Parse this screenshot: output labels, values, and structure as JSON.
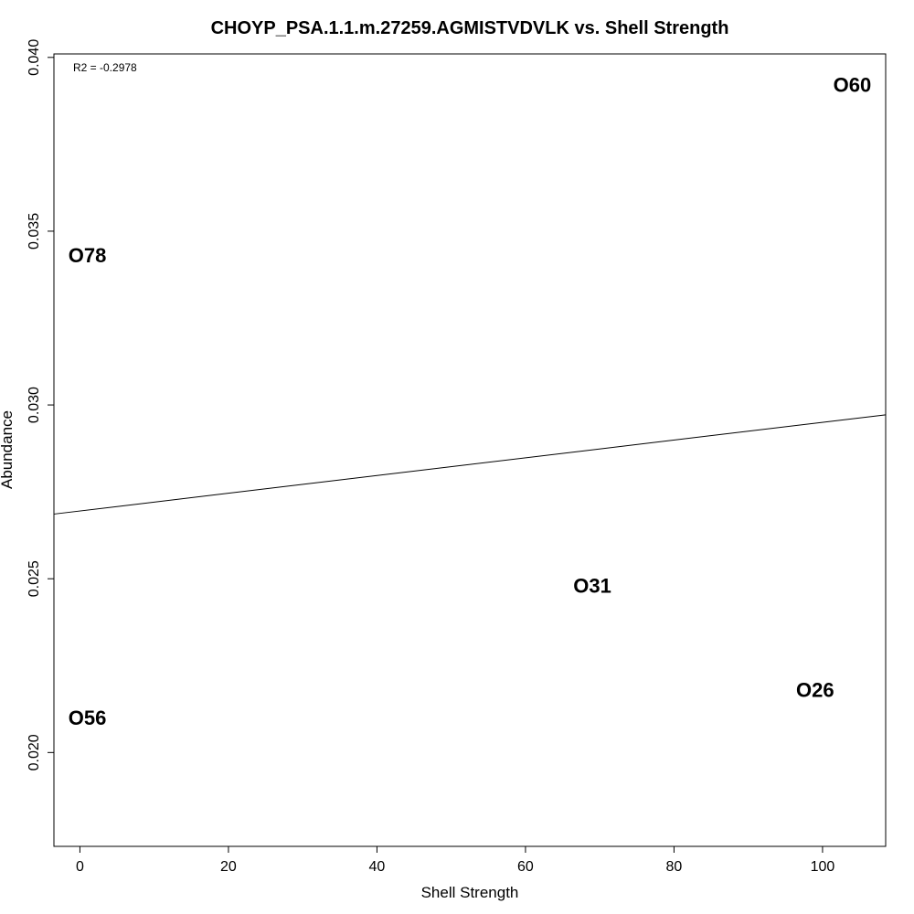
{
  "chart_data": {
    "type": "scatter",
    "title": "CHOYP_PSA.1.1.m.27259.AGMISTVDVLK vs. Shell Strength",
    "xlabel": "Shell Strength",
    "ylabel": "Abundance",
    "xlim": [
      -3.5,
      108.5
    ],
    "ylim": [
      0.0173,
      0.0401
    ],
    "x_ticks": [
      0,
      20,
      40,
      60,
      80,
      100
    ],
    "y_ticks": [
      0.02,
      0.025,
      0.03,
      0.035,
      0.04
    ],
    "y_tick_labels": [
      "0.020",
      "0.025",
      "0.030",
      "0.035",
      "0.040"
    ],
    "annotation": "R2 = -0.2978",
    "points": [
      {
        "label": "O60",
        "x": 104,
        "y": 0.0392
      },
      {
        "label": "O78",
        "x": 1,
        "y": 0.0343
      },
      {
        "label": "O31",
        "x": 69,
        "y": 0.0248
      },
      {
        "label": "O26",
        "x": 99,
        "y": 0.0218
      },
      {
        "label": "O56",
        "x": 1,
        "y": 0.021
      }
    ],
    "trendline": {
      "intercept": 0.02695,
      "slope": 2.55e-05
    },
    "grid": false,
    "legend": "none"
  }
}
